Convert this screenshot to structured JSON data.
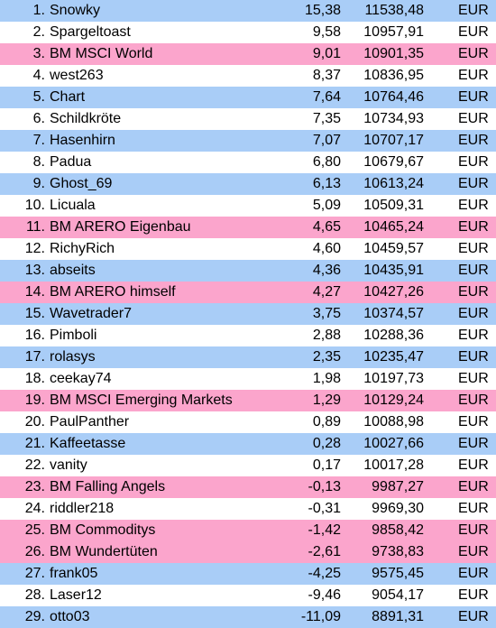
{
  "colors": {
    "blue": "#a9cdf7",
    "white": "#ffffff",
    "pink": "#fba5cc"
  },
  "rows": [
    {
      "rank": "1.",
      "name": "Snowky",
      "pct": "15,38",
      "value": "11538,48",
      "currency": "EUR",
      "bg": "blue"
    },
    {
      "rank": "2.",
      "name": "Spargeltoast",
      "pct": "9,58",
      "value": "10957,91",
      "currency": "EUR",
      "bg": "white"
    },
    {
      "rank": "3.",
      "name": "BM MSCI World",
      "pct": "9,01",
      "value": "10901,35",
      "currency": "EUR",
      "bg": "pink"
    },
    {
      "rank": "4.",
      "name": "west263",
      "pct": "8,37",
      "value": "10836,95",
      "currency": "EUR",
      "bg": "white"
    },
    {
      "rank": "5.",
      "name": "Chart",
      "pct": "7,64",
      "value": "10764,46",
      "currency": "EUR",
      "bg": "blue"
    },
    {
      "rank": "6.",
      "name": "Schildkröte",
      "pct": "7,35",
      "value": "10734,93",
      "currency": "EUR",
      "bg": "white"
    },
    {
      "rank": "7.",
      "name": "Hasenhirn",
      "pct": "7,07",
      "value": "10707,17",
      "currency": "EUR",
      "bg": "blue"
    },
    {
      "rank": "8.",
      "name": "Padua",
      "pct": "6,80",
      "value": "10679,67",
      "currency": "EUR",
      "bg": "white"
    },
    {
      "rank": "9.",
      "name": "Ghost_69",
      "pct": "6,13",
      "value": "10613,24",
      "currency": "EUR",
      "bg": "blue"
    },
    {
      "rank": "10.",
      "name": "Licuala",
      "pct": "5,09",
      "value": "10509,31",
      "currency": "EUR",
      "bg": "white"
    },
    {
      "rank": "11.",
      "name": "BM ARERO Eigenbau",
      "pct": "4,65",
      "value": "10465,24",
      "currency": "EUR",
      "bg": "pink"
    },
    {
      "rank": "12.",
      "name": "RichyRich",
      "pct": "4,60",
      "value": "10459,57",
      "currency": "EUR",
      "bg": "white"
    },
    {
      "rank": "13.",
      "name": "abseits",
      "pct": "4,36",
      "value": "10435,91",
      "currency": "EUR",
      "bg": "blue"
    },
    {
      "rank": "14.",
      "name": "BM ARERO himself",
      "pct": "4,27",
      "value": "10427,26",
      "currency": "EUR",
      "bg": "pink"
    },
    {
      "rank": "15.",
      "name": "Wavetrader7",
      "pct": "3,75",
      "value": "10374,57",
      "currency": "EUR",
      "bg": "blue"
    },
    {
      "rank": "16.",
      "name": "Pimboli",
      "pct": "2,88",
      "value": "10288,36",
      "currency": "EUR",
      "bg": "white"
    },
    {
      "rank": "17.",
      "name": "rolasys",
      "pct": "2,35",
      "value": "10235,47",
      "currency": "EUR",
      "bg": "blue"
    },
    {
      "rank": "18.",
      "name": "ceekay74",
      "pct": "1,98",
      "value": "10197,73",
      "currency": "EUR",
      "bg": "white"
    },
    {
      "rank": "19.",
      "name": "BM MSCI Emerging Markets",
      "pct": "1,29",
      "value": "10129,24",
      "currency": "EUR",
      "bg": "pink"
    },
    {
      "rank": "20.",
      "name": "PaulPanther",
      "pct": "0,89",
      "value": "10088,98",
      "currency": "EUR",
      "bg": "white"
    },
    {
      "rank": "21.",
      "name": "Kaffeetasse",
      "pct": "0,28",
      "value": "10027,66",
      "currency": "EUR",
      "bg": "blue"
    },
    {
      "rank": "22.",
      "name": "vanity",
      "pct": "0,17",
      "value": "10017,28",
      "currency": "EUR",
      "bg": "white"
    },
    {
      "rank": "23.",
      "name": "BM Falling Angels",
      "pct": "-0,13",
      "value": "9987,27",
      "currency": "EUR",
      "bg": "pink"
    },
    {
      "rank": "24.",
      "name": "riddler218",
      "pct": "-0,31",
      "value": "9969,30",
      "currency": "EUR",
      "bg": "white"
    },
    {
      "rank": "25.",
      "name": "BM Commoditys",
      "pct": "-1,42",
      "value": "9858,42",
      "currency": "EUR",
      "bg": "pink"
    },
    {
      "rank": "26.",
      "name": "BM Wundertüten",
      "pct": "-2,61",
      "value": "9738,83",
      "currency": "EUR",
      "bg": "pink"
    },
    {
      "rank": "27.",
      "name": "frank05",
      "pct": "-4,25",
      "value": "9575,45",
      "currency": "EUR",
      "bg": "blue"
    },
    {
      "rank": "28.",
      "name": "Laser12",
      "pct": "-9,46",
      "value": "9054,17",
      "currency": "EUR",
      "bg": "white"
    },
    {
      "rank": "29.",
      "name": "otto03",
      "pct": "-11,09",
      "value": "8891,31",
      "currency": "EUR",
      "bg": "blue"
    }
  ]
}
